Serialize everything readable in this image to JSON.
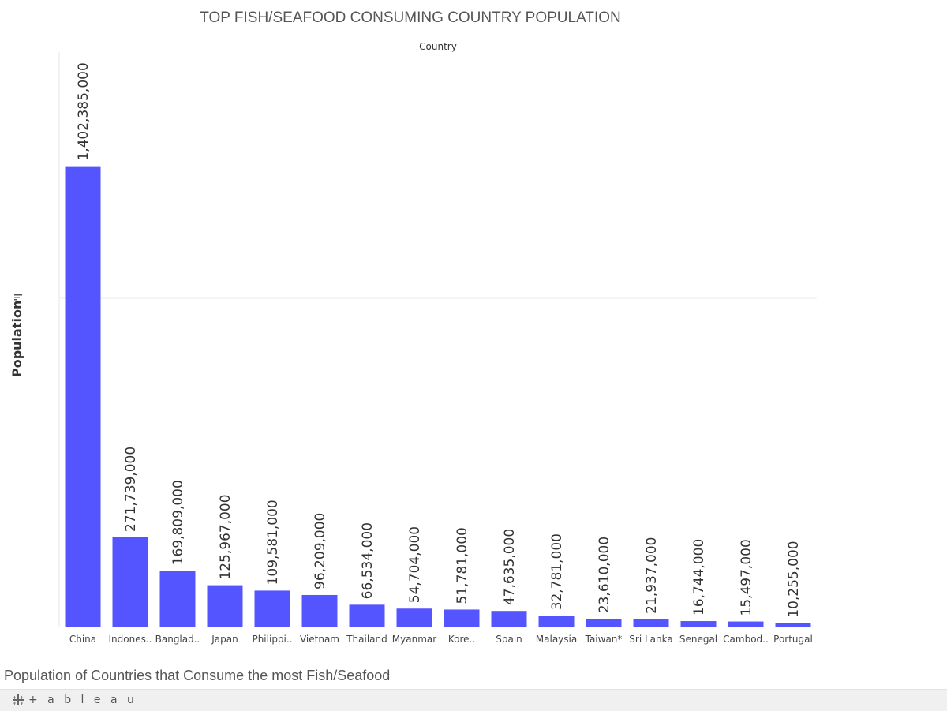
{
  "title": "TOP FISH/SEAFOOD CONSUMING COUNTRY POPULATION",
  "column_header": "Country",
  "caption": "Population of Countries that Consume the most Fish/Seafood",
  "brand": "+ a b l e a u",
  "colors": {
    "bar": "#5555ff",
    "grid": "#ececec",
    "text": "#333333"
  },
  "chart_data": {
    "type": "bar",
    "categories": [
      "China",
      "Indones..",
      "Banglad..",
      "Japan",
      "Philippi..",
      "Vietnam",
      "Thailand",
      "Myanmar",
      "Kore..",
      "Spain",
      "Malaysia",
      "Taiwan*",
      "Sri Lanka",
      "Senegal",
      "Cambod..",
      "Portugal"
    ],
    "values": [
      1402385000,
      271739000,
      169809000,
      125967000,
      109581000,
      96209000,
      66534000,
      54704000,
      51781000,
      47635000,
      32781000,
      23610000,
      21937000,
      16744000,
      15497000,
      10255000
    ],
    "data_labels": [
      "1,402,385,000",
      "271,739,000",
      "169,809,000",
      "125,967,000",
      "109,581,000",
      "96,209,000",
      "66,534,000",
      "54,704,000",
      "51,781,000",
      "47,635,000",
      "32,781,000",
      "23,610,000",
      "21,937,000",
      "16,744,000",
      "15,497,000",
      "10,255,000"
    ],
    "ylabel": "Population",
    "xlabel": "Country",
    "ylim": [
      0,
      1750000000
    ],
    "gridlines": [
      1000000000
    ],
    "grid": true,
    "legend": "none"
  }
}
